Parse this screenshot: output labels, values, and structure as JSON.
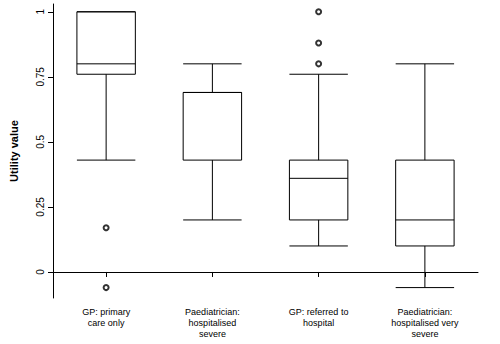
{
  "chart_data": {
    "type": "boxplot",
    "y_label": "Utility value",
    "categories": [
      "GP: primary\ncare only",
      "Paediatrician:\nhospitalised\nsevere",
      "GP: referred to\nhospital",
      "Paediatrician:\nhospitalised very\nsevere"
    ],
    "boxes": [
      [
        0.43,
        0.76,
        0.8,
        1,
        1
      ],
      [
        0.2,
        0.43,
        0.69,
        0.69,
        0.8
      ],
      [
        0.1,
        0.2,
        0.36,
        0.43,
        0.76
      ],
      [
        -0.06,
        0.1,
        0.2,
        0.43,
        0.8
      ]
    ],
    "outliers": [
      [
        0.17,
        -0.06
      ],
      [],
      [
        1,
        0.88,
        0.8
      ],
      []
    ],
    "color": "#000000",
    "ylim": [
      -0.1,
      1.03
    ],
    "yticks": [
      0,
      0.25,
      0.5,
      0.75,
      1
    ],
    "grid": false
  }
}
